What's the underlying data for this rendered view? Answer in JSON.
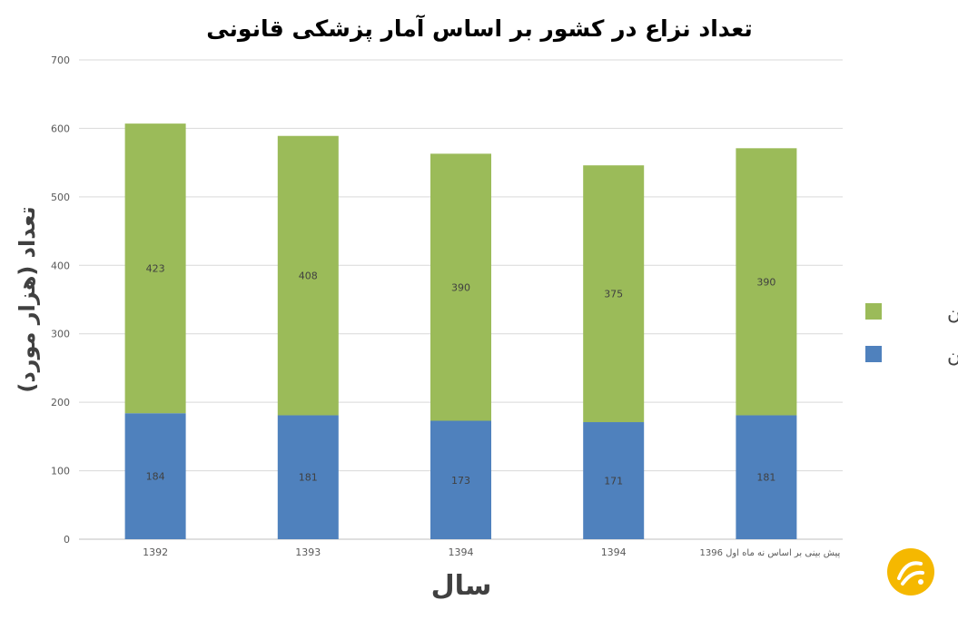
{
  "chart_data": {
    "type": "bar",
    "stacked": true,
    "title": "تعداد نزاع در کشور بر اساس آمار پزشکی قانونی",
    "xlabel": "سال",
    "ylabel": "تعداد (هزار مورد)",
    "categories": [
      "1392",
      "1393",
      "1394",
      "1394",
      "پیش بینی بر اساس نه ماه اول 1396"
    ],
    "series": [
      {
        "name": "زنان",
        "color": "#4F81BD",
        "values": [
          184,
          181,
          173,
          171,
          181
        ]
      },
      {
        "name": "مردان",
        "color": "#9BBB59",
        "values": [
          423,
          408,
          390,
          375,
          390
        ]
      }
    ],
    "ylim": [
      0,
      700
    ],
    "yticks": [
      0,
      100,
      200,
      300,
      400,
      500,
      600,
      700
    ],
    "grid": true,
    "legend_position": "right"
  },
  "logo": {
    "icon": "logo-icon",
    "color": "#F5B800"
  }
}
